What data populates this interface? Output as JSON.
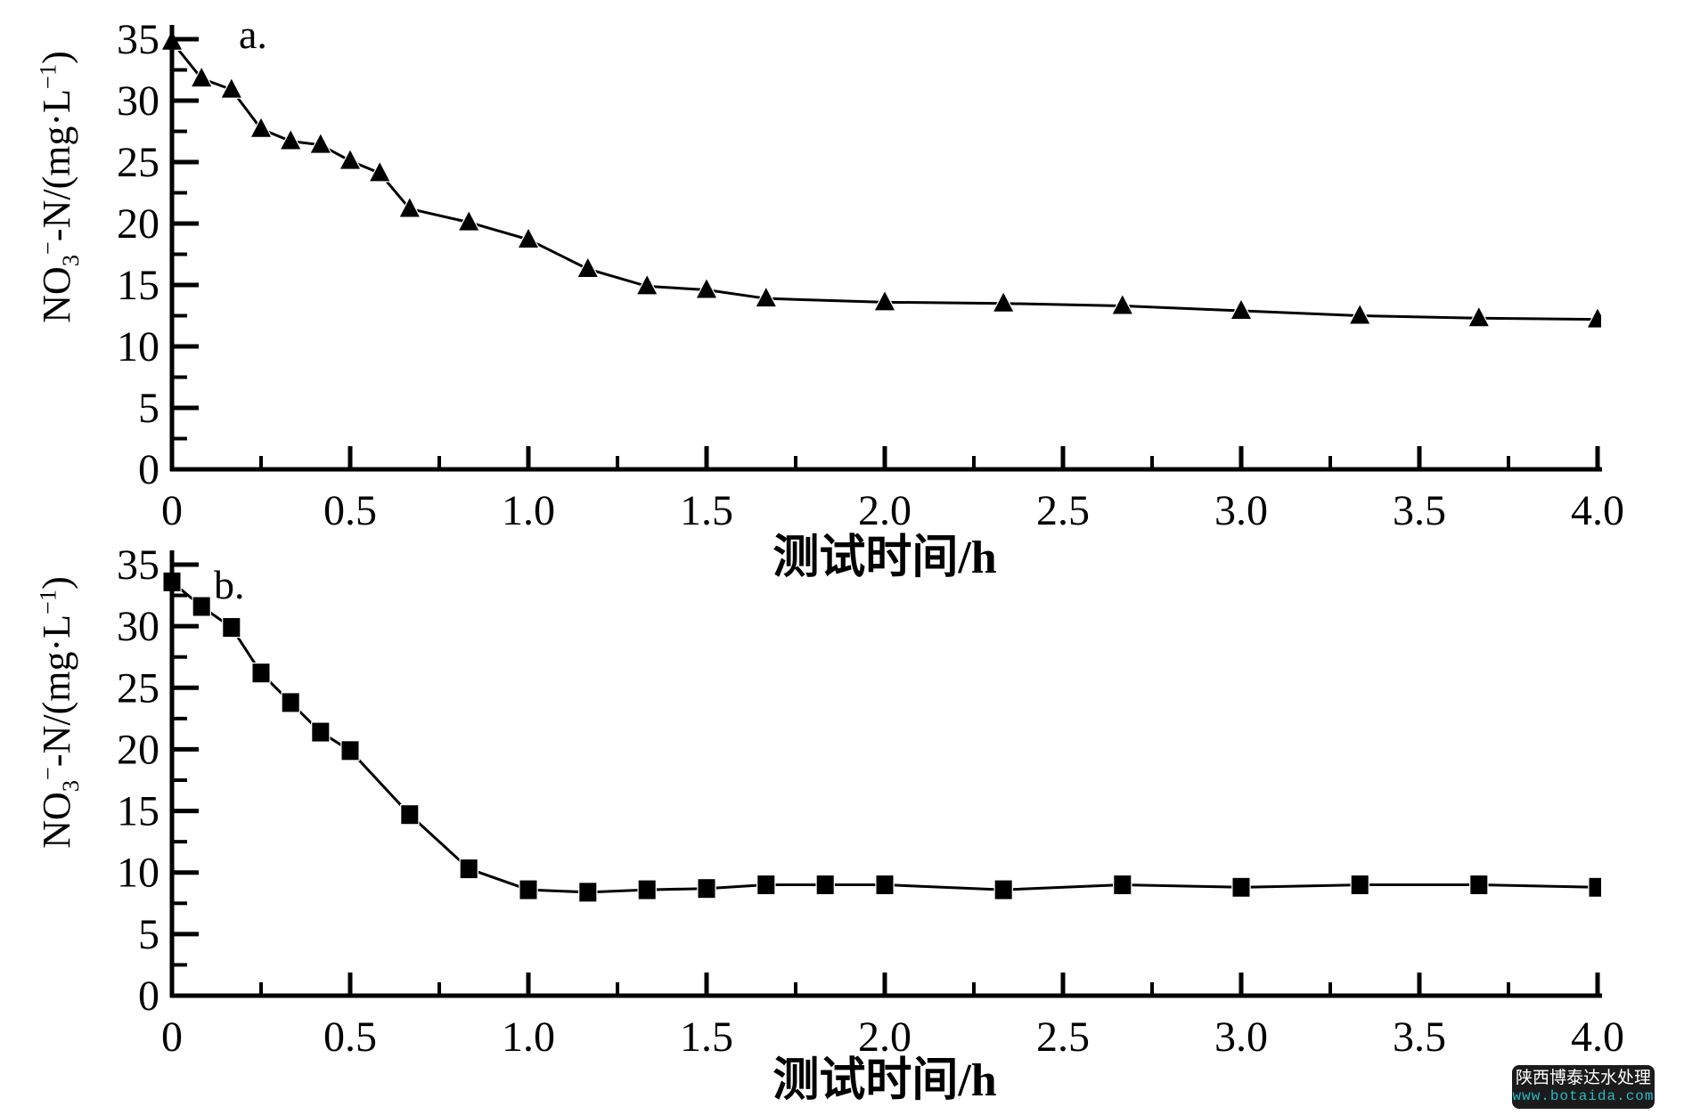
{
  "page": {
    "background": "#ffffff",
    "ink_color": "#000000"
  },
  "watermark": {
    "line1": "陕西博泰达水处理",
    "line2": "www.botaida.com",
    "bg": "#1b1b1b",
    "line1_color": "#ffffff",
    "line2_color": "#2bb7c4"
  },
  "chart_data": [
    {
      "type": "line",
      "panel_label": "a.",
      "marker": "triangle",
      "xlabel": "测试时间/h",
      "ylabel_parts": {
        "p1": "NO",
        "sub": "3",
        "sup": "−",
        "p2": "-N/(mg·L",
        "sup2": "−1",
        "p3": ")"
      },
      "xlim": [
        0,
        4
      ],
      "ylim": [
        0,
        35
      ],
      "x_ticks": [
        0,
        0.5,
        1.0,
        1.5,
        2.0,
        2.5,
        3.0,
        3.5,
        4.0
      ],
      "x_tick_labels": [
        "0",
        "0.5",
        "1.0",
        "1.5",
        "2.0",
        "2.5",
        "3.0",
        "3.5",
        "4.0"
      ],
      "y_ticks": [
        0,
        5,
        10,
        15,
        20,
        25,
        30,
        35
      ],
      "y_tick_labels": [
        "0",
        "5",
        "10",
        "15",
        "20",
        "25",
        "30",
        "35"
      ],
      "x_minor_step": 0.25,
      "y_minor_step": 2.5,
      "grid": false,
      "legend": "none",
      "series": [
        {
          "x": [
            0,
            0.083,
            0.167,
            0.25,
            0.333,
            0.417,
            0.5,
            0.583,
            0.667,
            0.833,
            1.0,
            1.167,
            1.333,
            1.5,
            1.667,
            2.0,
            2.333,
            2.667,
            3.0,
            3.333,
            3.667,
            4.0
          ],
          "y": [
            34.8,
            31.8,
            30.9,
            27.7,
            26.7,
            26.4,
            25.1,
            24.1,
            21.2,
            20.1,
            18.7,
            16.3,
            14.9,
            14.6,
            13.9,
            13.6,
            13.5,
            13.3,
            12.9,
            12.5,
            12.3,
            12.2
          ]
        }
      ]
    },
    {
      "type": "line",
      "panel_label": "b.",
      "marker": "square",
      "xlabel": "测试时间/h",
      "ylabel_parts": {
        "p1": "NO",
        "sub": "3",
        "sup": "−",
        "p2": "-N/(mg·L",
        "sup2": "−1",
        "p3": ")"
      },
      "xlim": [
        0,
        4
      ],
      "ylim": [
        0,
        35
      ],
      "x_ticks": [
        0,
        0.5,
        1.0,
        1.5,
        2.0,
        2.5,
        3.0,
        3.5,
        4.0
      ],
      "x_tick_labels": [
        "0",
        "0.5",
        "1.0",
        "1.5",
        "2.0",
        "2.5",
        "3.0",
        "3.5",
        "4.0"
      ],
      "y_ticks": [
        0,
        5,
        10,
        15,
        20,
        25,
        30,
        35
      ],
      "y_tick_labels": [
        "0",
        "5",
        "10",
        "15",
        "20",
        "25",
        "30",
        "35"
      ],
      "x_minor_step": 0.25,
      "y_minor_step": 2.5,
      "grid": false,
      "legend": "none",
      "series": [
        {
          "x": [
            0,
            0.083,
            0.167,
            0.25,
            0.333,
            0.417,
            0.5,
            0.667,
            0.833,
            1.0,
            1.167,
            1.333,
            1.5,
            1.667,
            1.833,
            2.0,
            2.333,
            2.667,
            3.0,
            3.333,
            3.667,
            4.0
          ],
          "y": [
            33.6,
            31.6,
            29.9,
            26.2,
            23.8,
            21.4,
            19.9,
            14.7,
            10.3,
            8.6,
            8.4,
            8.6,
            8.7,
            9.0,
            9.0,
            9.0,
            8.6,
            9.0,
            8.8,
            9.0,
            9.0,
            8.8
          ]
        }
      ]
    }
  ]
}
